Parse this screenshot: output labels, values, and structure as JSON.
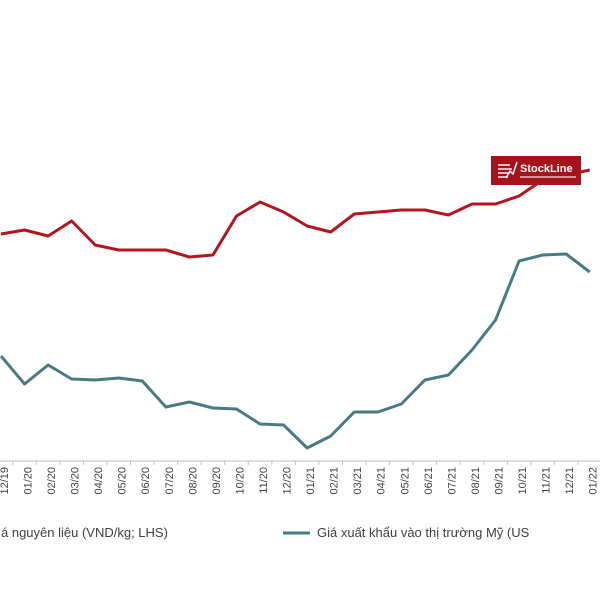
{
  "colors": {
    "raw_material": "#b2161e",
    "export": "#4a7a82",
    "axis": "#bfbfbf",
    "logo_bg": "#a5141c"
  },
  "logo": {
    "name": "StockLine",
    "icon": "stockline-mark-icon"
  },
  "chart_data": {
    "type": "line",
    "title": "",
    "xlabel": "",
    "ylabel": "",
    "categories": [
      "12/19",
      "01/20",
      "02/20",
      "03/20",
      "04/20",
      "05/20",
      "06/20",
      "07/20",
      "08/20",
      "09/20",
      "10/20",
      "11/20",
      "12/20",
      "01/21",
      "02/21",
      "03/21",
      "04/21",
      "05/21",
      "06/21",
      "07/21",
      "08/21",
      "09/21",
      "10/21",
      "11/21",
      "12/21",
      "01/22"
    ],
    "series": [
      {
        "name": "Giá nguyên liệu (VND/kg; LHS)",
        "legend_visible": "á nguyên liệu (VND/kg; LHS)",
        "axis": "left",
        "color": "#b2161e",
        "values": [
          234,
          230,
          236,
          221,
          245,
          250,
          250,
          250,
          257,
          255,
          216,
          202,
          212,
          226,
          232,
          214,
          212,
          210,
          210,
          215,
          204,
          204,
          196,
          180,
          175,
          170
        ]
      },
      {
        "name": "Giá xuất khẩu vào thị trường Mỹ (USD/kg)",
        "legend_visible": "Giá xuất khẩu vào thị trường Mỹ (US",
        "axis": "right",
        "color": "#4a7a82",
        "values": [
          356,
          384,
          365,
          379,
          380,
          378,
          381,
          407,
          402,
          408,
          409,
          424,
          425,
          448,
          436,
          412,
          412,
          404,
          380,
          375,
          350,
          320,
          261,
          255,
          254,
          272
        ]
      }
    ],
    "grid": false,
    "legend": "bottom"
  }
}
